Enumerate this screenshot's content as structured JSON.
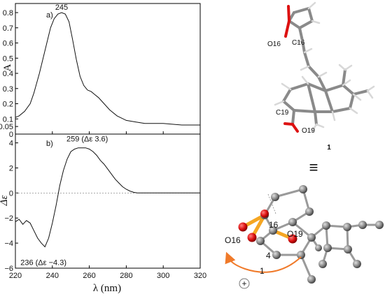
{
  "chart_data": [
    {
      "type": "line",
      "panel_label": "a)",
      "ylabel": "A",
      "xlim": [
        220,
        320
      ],
      "ylim": [
        0,
        0.85
      ],
      "xticks": [
        "220",
        "240",
        "260",
        "280",
        "300",
        "320"
      ],
      "yticks": [
        "0",
        "0.05",
        "0.1",
        "0.2",
        "0.3",
        "0.4",
        "0.5",
        "0.6",
        "0.7",
        "0.8"
      ],
      "series": [
        {
          "x": [
            220,
            222,
            225,
            228,
            230,
            233,
            235,
            237,
            239,
            241,
            243,
            245,
            247,
            249,
            251,
            253,
            255,
            257,
            259,
            261,
            263,
            265,
            268,
            271,
            275,
            280,
            285,
            290,
            300,
            310,
            320
          ],
          "values": [
            0.11,
            0.12,
            0.15,
            0.2,
            0.27,
            0.4,
            0.5,
            0.6,
            0.7,
            0.76,
            0.79,
            0.8,
            0.79,
            0.74,
            0.62,
            0.49,
            0.38,
            0.32,
            0.29,
            0.28,
            0.26,
            0.24,
            0.2,
            0.16,
            0.12,
            0.09,
            0.08,
            0.07,
            0.07,
            0.06,
            0.06
          ]
        }
      ],
      "annotations": [
        {
          "text": "245",
          "x": 245,
          "y": 0.8
        }
      ]
    },
    {
      "type": "line",
      "panel_label": "b)",
      "ylabel": "Δε",
      "xlabel": "λ (nm)",
      "xlim": [
        220,
        320
      ],
      "ylim": [
        -6,
        4.5
      ],
      "xticks": [
        "220",
        "240",
        "260",
        "280",
        "300",
        "320"
      ],
      "yticks": [
        "−6",
        "−4",
        "−2",
        "0",
        "2",
        "4"
      ],
      "series": [
        {
          "x": [
            220,
            222,
            224,
            226,
            228,
            230,
            232,
            234,
            236,
            238,
            240,
            242,
            244,
            246,
            248,
            250,
            252,
            254,
            256,
            258,
            260,
            262,
            264,
            266,
            268,
            270,
            272,
            274,
            276,
            278,
            280,
            282,
            284,
            286,
            290,
            300,
            310,
            320
          ],
          "values": [
            -2.3,
            -2.1,
            -2.5,
            -2.2,
            -2.4,
            -3.0,
            -3.6,
            -4.0,
            -4.3,
            -3.6,
            -2.4,
            -1.0,
            0.6,
            1.8,
            2.7,
            3.3,
            3.5,
            3.6,
            3.6,
            3.6,
            3.5,
            3.3,
            3.0,
            2.6,
            2.3,
            1.9,
            1.5,
            1.1,
            0.8,
            0.5,
            0.3,
            0.15,
            0.05,
            0.0,
            0.0,
            0.0,
            0.0,
            0.0
          ]
        }
      ],
      "annotations": [
        {
          "text": "259 (Δε 3.6)",
          "x": 259,
          "y": 3.6
        },
        {
          "text": "236 (Δε −4.3)",
          "x": 236,
          "y": -4.3
        }
      ],
      "zero_line": true
    }
  ],
  "structure": {
    "compound_label": "1",
    "equivalence_symbol": "≡",
    "top_labels": [
      "O16",
      "C16",
      "C19",
      "O19"
    ],
    "bottom_labels": [
      "16",
      "O19",
      "O16",
      "4",
      "1"
    ],
    "sign_symbol": "+"
  }
}
